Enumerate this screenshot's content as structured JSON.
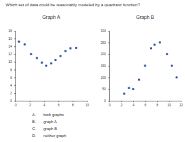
{
  "question": "Which set of data could be reasonably modeled by a quadratic function?",
  "choices": [
    {
      "letter": "A.",
      "text": "both graphs"
    },
    {
      "letter": "B.",
      "text": "graph A"
    },
    {
      "letter": "C.",
      "text": "graph B"
    },
    {
      "letter": "D.",
      "text": "neither graph"
    }
  ],
  "chart_data": [
    {
      "type": "scatter",
      "title": "Graph A",
      "color": "#3a5fa8",
      "marker": "circle",
      "x": [
        0.5,
        1.3,
        2.2,
        3.0,
        3.7,
        4.3,
        5.0,
        5.6,
        6.3,
        7.0,
        7.7,
        8.5
      ],
      "values": [
        15.2,
        14.5,
        12.0,
        11.0,
        9.8,
        9.0,
        9.6,
        10.5,
        11.5,
        12.8,
        13.5,
        13.6
      ],
      "xlim": [
        0,
        10
      ],
      "ylim": [
        0,
        18
      ],
      "xticks": [
        0,
        2,
        4,
        6,
        8,
        10
      ],
      "yticks": [
        0,
        2,
        4,
        6,
        8,
        10,
        12,
        14,
        16,
        18
      ]
    },
    {
      "type": "scatter",
      "title": "Graph B",
      "color": "#3a5fa8",
      "marker": "circle",
      "x": [
        2.5,
        3.3,
        4.0,
        5.0,
        6.0,
        7.0,
        7.6,
        8.5,
        9.7,
        10.5,
        11.3
      ],
      "values": [
        30,
        55,
        50,
        90,
        150,
        225,
        240,
        250,
        200,
        150,
        100
      ],
      "xlim": [
        0,
        12
      ],
      "ylim": [
        0,
        300
      ],
      "xticks": [
        0,
        2,
        4,
        6,
        8,
        10,
        12
      ],
      "yticks": [
        0,
        50,
        100,
        150,
        200,
        250,
        300
      ]
    }
  ]
}
